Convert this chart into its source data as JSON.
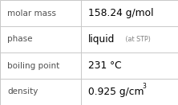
{
  "rows": [
    {
      "label": "molar mass",
      "value": "158.24 g/mol",
      "suffix": null,
      "superscript": null
    },
    {
      "label": "phase",
      "value": "liquid",
      "suffix": " (at STP)",
      "superscript": null
    },
    {
      "label": "boiling point",
      "value": "231 °C",
      "suffix": null,
      "superscript": null
    },
    {
      "label": "density",
      "value": "0.925 g/cm",
      "suffix": null,
      "superscript": "3"
    }
  ],
  "col_split": 0.455,
  "background_color": "#ffffff",
  "border_color": "#c8c8c8",
  "label_fontsize": 7.5,
  "value_fontsize": 8.8,
  "suffix_fontsize": 5.8,
  "super_fontsize": 5.5,
  "label_color": "#505050",
  "value_color": "#000000",
  "suffix_color": "#808080"
}
